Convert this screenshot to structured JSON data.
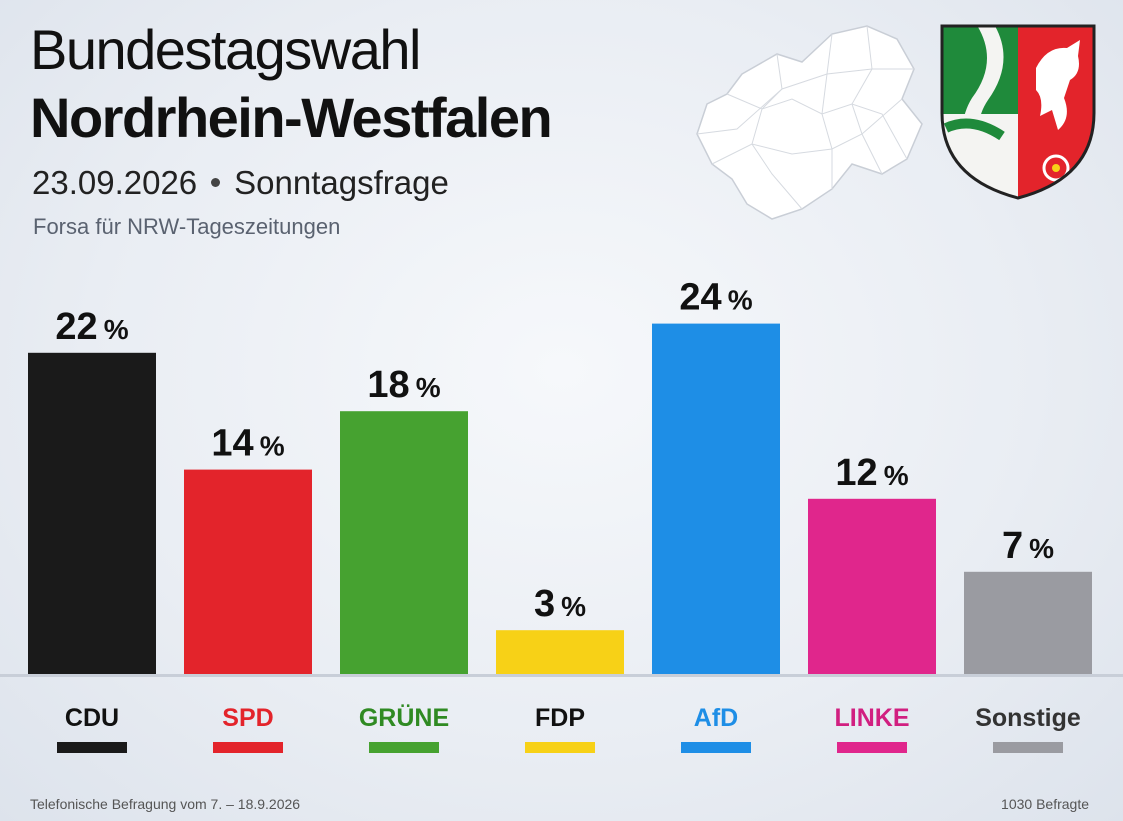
{
  "header": {
    "title_line1": "Bundestagswahl",
    "title_line2": "Nordrhein-Westfalen",
    "date": "23.09.2026",
    "poll_type": "Sonntagsfrage",
    "institute": "Forsa für NRW-Tageszeitungen"
  },
  "footer": {
    "left": "Telefonische Befragung vom 7. – 18.9.2026",
    "right": "1030 Befragte"
  },
  "chart_data": {
    "type": "bar",
    "title": "",
    "xlabel": "",
    "ylabel": "",
    "unit_suffix": "%",
    "ylim": [
      0,
      26
    ],
    "grid": false,
    "legend": "none",
    "categories": [
      "CDU",
      "SPD",
      "GRÜNE",
      "FDP",
      "AfD",
      "LINKE",
      "Sonstige"
    ],
    "values": [
      22,
      14,
      18,
      3,
      24,
      12,
      7
    ],
    "colors": [
      "#1a1a1a",
      "#e3242b",
      "#46a230",
      "#f7d117",
      "#1e8ee6",
      "#e0268c",
      "#9a9ba1"
    ],
    "label_colors": [
      "#111111",
      "#e3242b",
      "#2f8a22",
      "#111111",
      "#1e8ee6",
      "#d11f80",
      "#333333"
    ]
  }
}
